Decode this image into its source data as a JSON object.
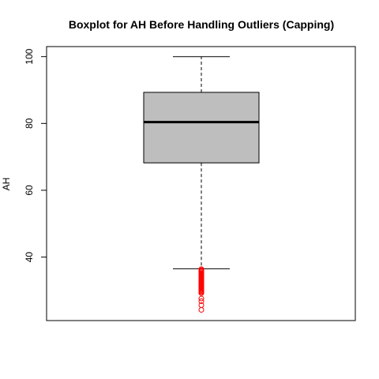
{
  "chart_data": {
    "type": "boxplot",
    "title": "Boxplot for AH Before Handling Outliers (Capping)",
    "xlabel": "",
    "ylabel": "AH",
    "ylim": [
      21,
      103
    ],
    "yticks": [
      40,
      60,
      80,
      100
    ],
    "box": {
      "min_whisker": 36.5,
      "q1": 68.2,
      "median": 80.4,
      "q3": 89.3,
      "max_whisker": 100
    },
    "outliers": [
      36.4,
      36.1,
      35.8,
      35.5,
      35.2,
      34.9,
      34.6,
      34.3,
      34.0,
      33.7,
      33.4,
      33.1,
      32.8,
      32.5,
      32.2,
      31.9,
      31.6,
      31.3,
      31.0,
      30.7,
      30.4,
      30.1,
      29.8,
      29.5,
      29.2,
      27.6,
      26.8,
      25.6,
      24.2
    ],
    "colors": {
      "box_fill": "#bebebe",
      "outlier": "#ff0000",
      "line": "#000000"
    }
  }
}
